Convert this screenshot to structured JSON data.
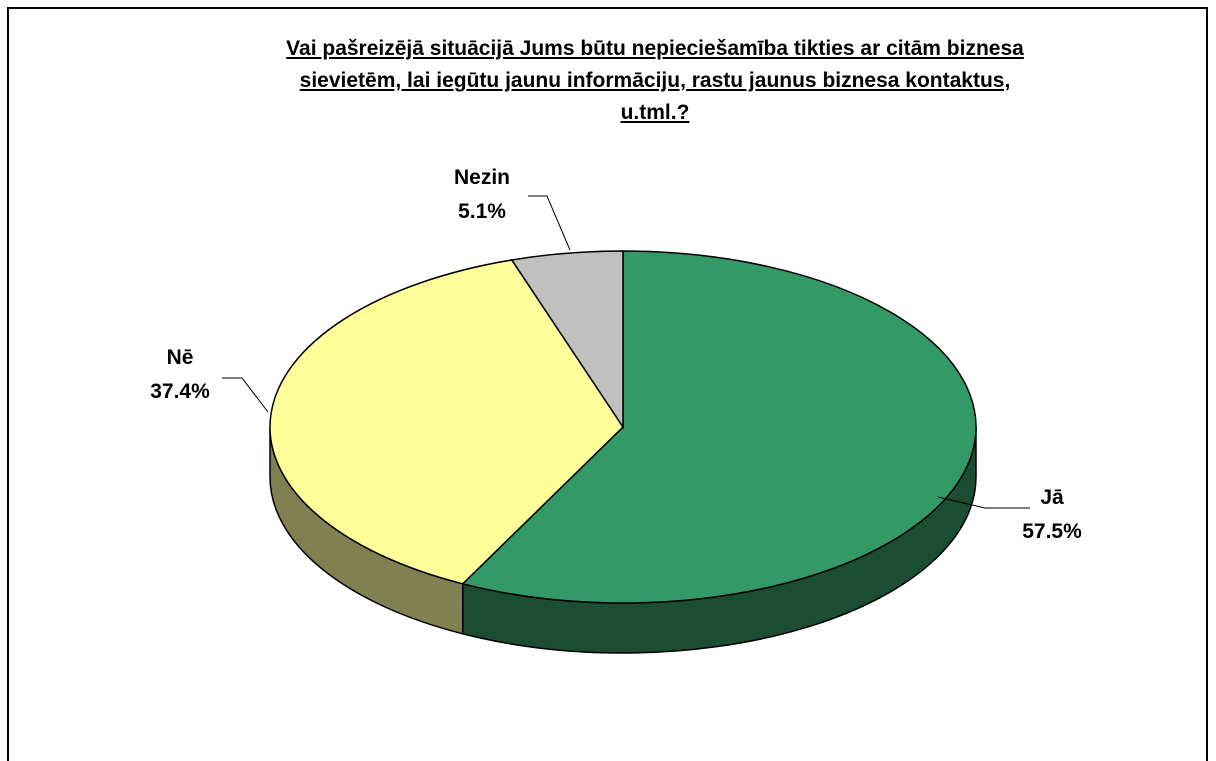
{
  "chart_data": {
    "type": "pie",
    "title_lines": [
      "Vai pašreizējā situācijā Jums būtu nepieciešamība tikties ar citām biznesa",
      "sievietēm, lai iegūtu jaunu informāciju, rastu jaunus biznesa kontaktus,",
      "u.tml.?"
    ],
    "slices": [
      {
        "label": "Jā",
        "value": 57.5,
        "value_label": "57.5%",
        "color": "#339966",
        "side_color": "#1b4d33"
      },
      {
        "label": "Nē",
        "value": 37.4,
        "value_label": "37.4%",
        "color": "#ffff99",
        "side_color": "#808050"
      },
      {
        "label": "Nezin",
        "value": 5.1,
        "value_label": "5.1%",
        "color": "#c0c0c0",
        "side_color": "#606060"
      }
    ]
  }
}
